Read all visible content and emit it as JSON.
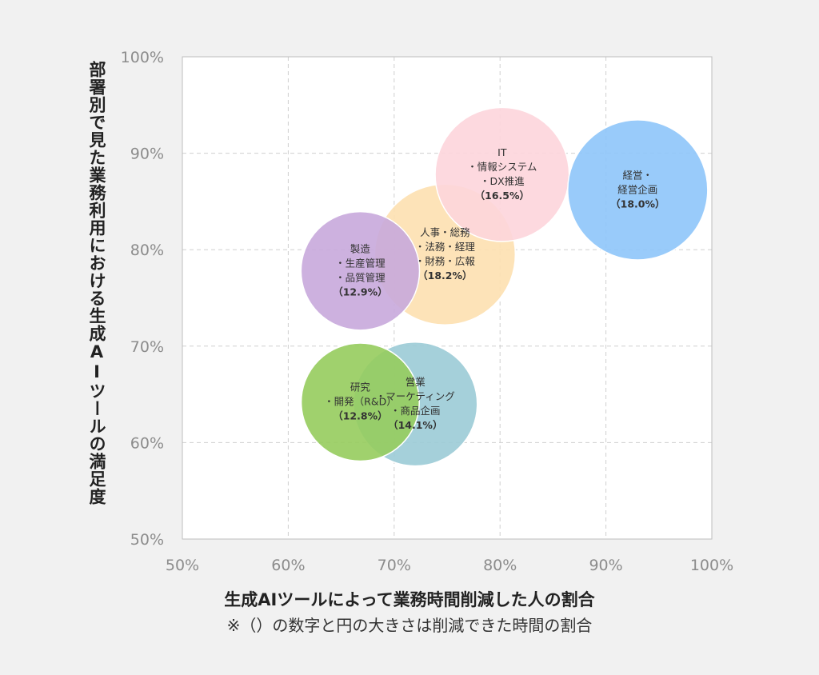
{
  "chart_data": {
    "type": "scatter",
    "title": "",
    "xlabel": "生成AIツールによって業務時間削減した人の割合",
    "ylabel": "部署別で見た業務利用における生成AIツールの満足度",
    "note": "※（）の数字と円の大きさは削減できた時間の割合",
    "xlim": [
      50,
      100
    ],
    "ylim": [
      50,
      100
    ],
    "x_ticks": [
      "50%",
      "60%",
      "70%",
      "80%",
      "90%",
      "100%"
    ],
    "y_ticks": [
      "50%",
      "60%",
      "70%",
      "80%",
      "90%",
      "100%"
    ],
    "grid": true,
    "points": [
      {
        "x": 72.0,
        "y": 64.0,
        "size": 14.1,
        "color": "#9bcbd6",
        "labels": [
          "営業",
          "・マーケティング",
          "・商品企画",
          "（14.1%）"
        ]
      },
      {
        "x": 74.8,
        "y": 79.5,
        "size": 18.2,
        "color": "#fde0b0",
        "labels": [
          "人事・総務",
          "・法務・経理",
          "・財務・広報",
          "（18.2%）"
        ]
      },
      {
        "x": 80.2,
        "y": 87.8,
        "size": 16.5,
        "color": "#fdd5dc",
        "labels": [
          "IT",
          "・情報システム",
          "・DX推進",
          "（16.5%）"
        ]
      },
      {
        "x": 93.0,
        "y": 86.2,
        "size": 18.0,
        "color": "#8ec5f9",
        "labels": [
          "経営・",
          "経営企画",
          "（18.0%）"
        ]
      },
      {
        "x": 66.8,
        "y": 77.8,
        "size": 12.9,
        "color": "#c8a8dc",
        "labels": [
          "製造",
          "・生産管理",
          "・品質管理",
          "（12.9%）"
        ]
      },
      {
        "x": 66.8,
        "y": 64.2,
        "size": 12.8,
        "color": "#96cc5d",
        "labels": [
          "研究",
          "・開発（R&D）",
          "（12.8%）"
        ]
      }
    ]
  }
}
